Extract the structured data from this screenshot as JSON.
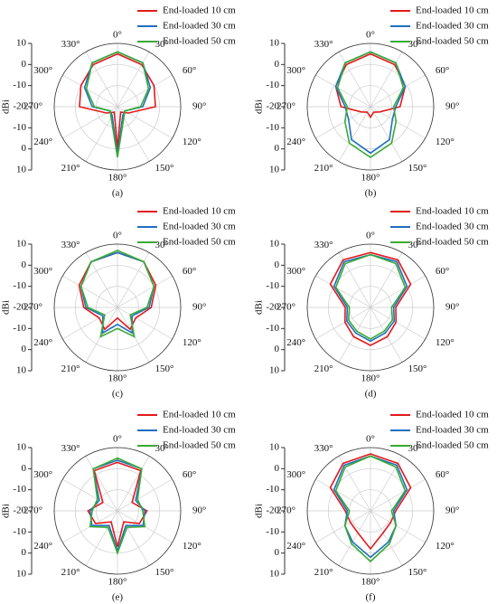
{
  "chart_data": [
    {
      "type": "polar",
      "label": "(a)",
      "ylabel": "dBi",
      "rlim": [
        -20,
        10
      ],
      "rticks": [
        -20,
        -10,
        0,
        10
      ],
      "x": [
        0,
        30,
        60,
        90,
        120,
        150,
        180,
        210,
        240,
        270,
        300,
        330
      ],
      "xticks": [
        {
          "value": 0,
          "label": "0°"
        },
        {
          "value": 30,
          "label": "30°"
        },
        {
          "value": 60,
          "label": "60°"
        },
        {
          "value": 90,
          "label": "90°"
        },
        {
          "value": 120,
          "label": "120°"
        },
        {
          "value": 150,
          "label": "150°"
        },
        {
          "value": 180,
          "label": "180°"
        },
        {
          "value": 210,
          "label": "210°"
        },
        {
          "value": 240,
          "label": "240°"
        },
        {
          "value": 270,
          "label": "270°"
        },
        {
          "value": 300,
          "label": "300°"
        },
        {
          "value": 330,
          "label": "330°"
        }
      ],
      "series": [
        {
          "name": "End-loaded 10 cm",
          "color": "#e31a1c",
          "values": [
            5,
            3,
            0,
            -2,
            -14,
            -17,
            0,
            -17,
            -14,
            -2,
            0,
            3
          ]
        },
        {
          "name": "End-loaded 30 cm",
          "color": "#1f6fc0",
          "values": [
            6,
            4,
            -2,
            -8,
            -16,
            -15,
            3,
            -15,
            -16,
            -8,
            -2,
            4
          ]
        },
        {
          "name": "End-loaded 50 cm",
          "color": "#3aaa35",
          "values": [
            6,
            4,
            -3,
            -9,
            -16,
            -14,
            4,
            -14,
            -16,
            -9,
            -3,
            4
          ]
        }
      ]
    },
    {
      "type": "polar",
      "label": "(b)",
      "ylabel": "dBi",
      "rlim": [
        -20,
        10
      ],
      "rticks": [
        -20,
        -10,
        0,
        10
      ],
      "x": [
        0,
        30,
        60,
        90,
        120,
        150,
        180,
        210,
        240,
        270,
        300,
        330
      ],
      "xticks": [
        {
          "value": 0,
          "label": "0°"
        },
        {
          "value": 30,
          "label": "30°"
        },
        {
          "value": 60,
          "label": "60°"
        },
        {
          "value": 90,
          "label": "90°"
        },
        {
          "value": 120,
          "label": "120°"
        },
        {
          "value": 150,
          "label": "150°"
        },
        {
          "value": 180,
          "label": "180°"
        },
        {
          "value": 210,
          "label": "210°"
        },
        {
          "value": 240,
          "label": "240°"
        },
        {
          "value": 270,
          "label": "270°"
        },
        {
          "value": 300,
          "label": "300°"
        },
        {
          "value": 330,
          "label": "330°"
        }
      ],
      "series": [
        {
          "name": "End-loaded 10 cm",
          "color": "#e31a1c",
          "values": [
            5,
            3,
            -1,
            -6,
            -15,
            -17,
            -15,
            -17,
            -15,
            -6,
            -1,
            3
          ]
        },
        {
          "name": "End-loaded 30 cm",
          "color": "#1f6fc0",
          "values": [
            6,
            4,
            -1,
            -8,
            -8,
            -2,
            2,
            -2,
            -8,
            -8,
            -1,
            4
          ]
        },
        {
          "name": "End-loaded 50 cm",
          "color": "#3aaa35",
          "values": [
            6,
            4,
            -2,
            -9,
            -6,
            0,
            4,
            0,
            -6,
            -9,
            -2,
            4
          ]
        }
      ]
    },
    {
      "type": "polar",
      "label": "(c)",
      "ylabel": "dBi",
      "rlim": [
        -20,
        10
      ],
      "rticks": [
        -20,
        -10,
        0,
        10
      ],
      "x": [
        0,
        30,
        60,
        90,
        120,
        150,
        180,
        210,
        240,
        270,
        300,
        330
      ],
      "xticks": [
        {
          "value": 0,
          "label": "0°"
        },
        {
          "value": 30,
          "label": "30°"
        },
        {
          "value": 60,
          "label": "60°"
        },
        {
          "value": 90,
          "label": "90°"
        },
        {
          "value": 120,
          "label": "120°"
        },
        {
          "value": 150,
          "label": "150°"
        },
        {
          "value": 180,
          "label": "180°"
        },
        {
          "value": 210,
          "label": "210°"
        },
        {
          "value": 240,
          "label": "240°"
        },
        {
          "value": 270,
          "label": "270°"
        },
        {
          "value": 300,
          "label": "300°"
        },
        {
          "value": 330,
          "label": "330°"
        }
      ],
      "series": [
        {
          "name": "End-loaded 10 cm",
          "color": "#e31a1c",
          "values": [
            6,
            5,
            1,
            -4,
            -10,
            -8,
            -15,
            -8,
            -10,
            -4,
            1,
            5
          ]
        },
        {
          "name": "End-loaded 30 cm",
          "color": "#1f6fc0",
          "values": [
            6,
            5,
            0,
            -5,
            -12,
            -6,
            -12,
            -6,
            -12,
            -5,
            0,
            5
          ]
        },
        {
          "name": "End-loaded 50 cm",
          "color": "#3aaa35",
          "values": [
            7,
            5,
            0,
            -6,
            -13,
            -4,
            -10,
            -4,
            -13,
            -6,
            0,
            5
          ]
        }
      ]
    },
    {
      "type": "polar",
      "label": "(d)",
      "ylabel": "dBi",
      "rlim": [
        -20,
        10
      ],
      "rticks": [
        -20,
        -10,
        0,
        10
      ],
      "x": [
        0,
        30,
        60,
        90,
        120,
        150,
        180,
        210,
        240,
        270,
        300,
        330
      ],
      "xticks": [
        {
          "value": 0,
          "label": "0°"
        },
        {
          "value": 30,
          "label": "30°"
        },
        {
          "value": 60,
          "label": "60°"
        },
        {
          "value": 90,
          "label": "90°"
        },
        {
          "value": 120,
          "label": "120°"
        },
        {
          "value": 150,
          "label": "150°"
        },
        {
          "value": 180,
          "label": "180°"
        },
        {
          "value": 210,
          "label": "210°"
        },
        {
          "value": 240,
          "label": "240°"
        },
        {
          "value": 270,
          "label": "270°"
        },
        {
          "value": 300,
          "label": "300°"
        },
        {
          "value": 330,
          "label": "330°"
        }
      ],
      "series": [
        {
          "name": "End-loaded 10 cm",
          "color": "#e31a1c",
          "values": [
            6,
            6,
            2,
            -8,
            -6,
            -4,
            -2,
            -4,
            -6,
            -8,
            2,
            6
          ]
        },
        {
          "name": "End-loaded 30 cm",
          "color": "#1f6fc0",
          "values": [
            5,
            5,
            0,
            -9,
            -7,
            -6,
            -4,
            -6,
            -7,
            -9,
            0,
            5
          ]
        },
        {
          "name": "End-loaded 50 cm",
          "color": "#3aaa35",
          "values": [
            5,
            4,
            -1,
            -10,
            -8,
            -7,
            -5,
            -7,
            -8,
            -10,
            -1,
            4
          ]
        }
      ]
    },
    {
      "type": "polar",
      "label": "(e)",
      "ylabel": "dBi",
      "rlim": [
        -20,
        10
      ],
      "rticks": [
        -20,
        -10,
        0,
        10
      ],
      "x": [
        0,
        30,
        60,
        90,
        120,
        150,
        180,
        210,
        240,
        270,
        300,
        330
      ],
      "xticks": [
        {
          "value": 0,
          "label": "0°"
        },
        {
          "value": 30,
          "label": "30°"
        },
        {
          "value": 60,
          "label": "60°"
        },
        {
          "value": 90,
          "label": "90°"
        },
        {
          "value": 120,
          "label": "120°"
        },
        {
          "value": 150,
          "label": "150°"
        },
        {
          "value": 180,
          "label": "180°"
        },
        {
          "value": 210,
          "label": "210°"
        },
        {
          "value": 240,
          "label": "240°"
        },
        {
          "value": 270,
          "label": "270°"
        },
        {
          "value": 300,
          "label": "300°"
        },
        {
          "value": 330,
          "label": "330°"
        }
      ],
      "series": [
        {
          "name": "End-loaded 10 cm",
          "color": "#e31a1c",
          "values": [
            3,
            2,
            -12,
            -6,
            -8,
            -14,
            -3,
            -14,
            -8,
            -6,
            -12,
            2
          ]
        },
        {
          "name": "End-loaded 30 cm",
          "color": "#1f6fc0",
          "values": [
            4,
            3,
            -10,
            -7,
            -6,
            -12,
            -1,
            -12,
            -6,
            -7,
            -10,
            3
          ]
        },
        {
          "name": "End-loaded 50 cm",
          "color": "#3aaa35",
          "values": [
            5,
            3,
            -9,
            -8,
            -5,
            -11,
            0,
            -11,
            -5,
            -8,
            -9,
            3
          ]
        }
      ]
    },
    {
      "type": "polar",
      "label": "(f)",
      "ylabel": "dBi",
      "rlim": [
        -20,
        10
      ],
      "rticks": [
        -20,
        -10,
        0,
        10
      ],
      "x": [
        0,
        30,
        60,
        90,
        120,
        150,
        180,
        210,
        240,
        270,
        300,
        330
      ],
      "xticks": [
        {
          "value": 0,
          "label": "0°"
        },
        {
          "value": 30,
          "label": "30°"
        },
        {
          "value": 60,
          "label": "60°"
        },
        {
          "value": 90,
          "label": "90°"
        },
        {
          "value": 120,
          "label": "120°"
        },
        {
          "value": 150,
          "label": "150°"
        },
        {
          "value": 180,
          "label": "180°"
        },
        {
          "value": 210,
          "label": "210°"
        },
        {
          "value": 240,
          "label": "240°"
        },
        {
          "value": 270,
          "label": "270°"
        },
        {
          "value": 300,
          "label": "300°"
        },
        {
          "value": 330,
          "label": "330°"
        }
      ],
      "series": [
        {
          "name": "End-loaded 10 cm",
          "color": "#e31a1c",
          "values": [
            7,
            6,
            2,
            -8,
            -9,
            -8,
            -2,
            -8,
            -9,
            -8,
            2,
            6
          ]
        },
        {
          "name": "End-loaded 30 cm",
          "color": "#1f6fc0",
          "values": [
            6,
            5,
            0,
            -9,
            -6,
            -3,
            2,
            -3,
            -6,
            -9,
            0,
            5
          ]
        },
        {
          "name": "End-loaded 50 cm",
          "color": "#3aaa35",
          "values": [
            6,
            4,
            -1,
            -10,
            -6,
            -2,
            4,
            -2,
            -6,
            -10,
            -1,
            4
          ]
        }
      ]
    }
  ]
}
